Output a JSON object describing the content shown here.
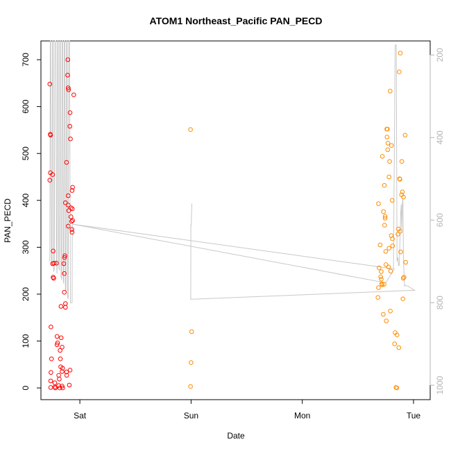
{
  "chart_data": {
    "type": "scatter",
    "title": "ATOM1 Northeast_Pacific PAN_PECD",
    "xlabel": "Date",
    "ylabel": "PAN_PECD",
    "x_ticks": [
      "Sat",
      "Sun",
      "Mon",
      "Tue"
    ],
    "y_ticks": [
      "0",
      "100",
      "200",
      "300",
      "400",
      "500",
      "600",
      "700"
    ],
    "y_right_ticks": [
      "200",
      "400",
      "600",
      "800",
      "1000"
    ],
    "xlim_days": [
      -0.35,
      3.15
    ],
    "ylim": [
      -25,
      740
    ],
    "y_right_lim_hpa": [
      1035,
      166
    ],
    "grid": false,
    "colors": {
      "red": "#ff0000",
      "orange": "#ff8c00",
      "pressure_line": "#c8c8c8",
      "right_axis": "#b3b3b3"
    },
    "series": [
      {
        "color": "red",
        "points": [
          [
            -0.27,
            648
          ],
          [
            -0.266,
            541
          ],
          [
            -0.263,
            539
          ],
          [
            -0.27,
            443
          ],
          [
            -0.265,
            459
          ],
          [
            -0.245,
            455
          ],
          [
            -0.26,
            130
          ],
          [
            -0.255,
            62
          ],
          [
            -0.26,
            33
          ],
          [
            -0.262,
            15
          ],
          [
            -0.262,
            1
          ],
          [
            -0.24,
            292
          ],
          [
            -0.245,
            265
          ],
          [
            -0.232,
            266
          ],
          [
            -0.21,
            266
          ],
          [
            -0.24,
            236
          ],
          [
            -0.235,
            234
          ],
          [
            -0.225,
            11
          ],
          [
            -0.225,
            2
          ],
          [
            -0.22,
            0
          ],
          [
            -0.205,
            110
          ],
          [
            -0.2,
            96
          ],
          [
            -0.205,
            92
          ],
          [
            -0.19,
            27
          ],
          [
            -0.185,
            19
          ],
          [
            -0.19,
            5
          ],
          [
            -0.18,
            0
          ],
          [
            -0.178,
            80
          ],
          [
            -0.175,
            62
          ],
          [
            -0.172,
            45
          ],
          [
            -0.168,
            107
          ],
          [
            -0.17,
            174
          ],
          [
            -0.16,
            35
          ],
          [
            -0.16,
            87
          ],
          [
            -0.155,
            42
          ],
          [
            -0.16,
            4
          ],
          [
            -0.155,
            0
          ],
          [
            -0.14,
            204
          ],
          [
            -0.14,
            244
          ],
          [
            -0.145,
            265
          ],
          [
            -0.135,
            282
          ],
          [
            -0.138,
            278
          ],
          [
            -0.13,
            180
          ],
          [
            -0.13,
            172
          ],
          [
            -0.13,
            395
          ],
          [
            -0.12,
            34
          ],
          [
            -0.118,
            27
          ],
          [
            -0.12,
            481
          ],
          [
            -0.11,
            667
          ],
          [
            -0.108,
            700
          ],
          [
            -0.105,
            640
          ],
          [
            -0.102,
            636
          ],
          [
            -0.105,
            390
          ],
          [
            -0.105,
            345
          ],
          [
            -0.105,
            410
          ],
          [
            -0.1,
            378
          ],
          [
            -0.095,
            6
          ],
          [
            -0.088,
            38
          ],
          [
            -0.09,
            558
          ],
          [
            -0.088,
            587
          ],
          [
            -0.085,
            531
          ],
          [
            -0.08,
            384
          ],
          [
            -0.08,
            365
          ],
          [
            -0.075,
            355
          ],
          [
            -0.072,
            338
          ],
          [
            -0.07,
            332
          ],
          [
            -0.07,
            421
          ],
          [
            -0.065,
            428
          ],
          [
            -0.068,
            382
          ],
          [
            -0.065,
            357
          ],
          [
            -0.055,
            625
          ]
        ]
      },
      {
        "color": "orange",
        "points": [
          [
            0.995,
            551
          ],
          [
            1.005,
            120
          ],
          [
            1.0,
            54
          ],
          [
            0.995,
            3
          ],
          [
            2.68,
            193
          ],
          [
            2.685,
            214
          ],
          [
            2.69,
            256
          ],
          [
            2.685,
            393
          ],
          [
            2.7,
            305
          ],
          [
            2.705,
            237
          ],
          [
            2.71,
            232
          ],
          [
            2.71,
            248
          ],
          [
            2.715,
            222
          ],
          [
            2.718,
            220
          ],
          [
            2.72,
            494
          ],
          [
            2.728,
            157
          ],
          [
            2.73,
            376
          ],
          [
            2.735,
            221
          ],
          [
            2.738,
            432
          ],
          [
            2.74,
            347
          ],
          [
            2.745,
            366
          ],
          [
            2.745,
            362
          ],
          [
            2.75,
            291
          ],
          [
            2.752,
            263
          ],
          [
            2.755,
            143
          ],
          [
            2.76,
            552
          ],
          [
            2.765,
            552
          ],
          [
            2.762,
            535
          ],
          [
            2.768,
            508
          ],
          [
            2.77,
            522
          ],
          [
            2.775,
            258
          ],
          [
            2.78,
            450
          ],
          [
            2.78,
            298
          ],
          [
            2.785,
            483
          ],
          [
            2.79,
            633
          ],
          [
            2.792,
            164
          ],
          [
            2.795,
            249
          ],
          [
            2.8,
            325
          ],
          [
            2.802,
            517
          ],
          [
            2.808,
            400
          ],
          [
            2.81,
            318
          ],
          [
            2.812,
            303
          ],
          [
            2.83,
            94
          ],
          [
            2.835,
            118
          ],
          [
            2.842,
            1
          ],
          [
            2.85,
            0
          ],
          [
            2.852,
            113
          ],
          [
            2.86,
            328
          ],
          [
            2.865,
            339
          ],
          [
            2.868,
            86
          ],
          [
            2.872,
            674
          ],
          [
            2.875,
            446
          ],
          [
            2.878,
            445
          ],
          [
            2.88,
            334
          ],
          [
            2.882,
            714
          ],
          [
            2.885,
            290
          ],
          [
            2.893,
            412
          ],
          [
            2.895,
            483
          ],
          [
            2.9,
            418
          ],
          [
            2.905,
            190
          ],
          [
            2.908,
            234
          ],
          [
            2.91,
            407
          ],
          [
            2.915,
            236
          ],
          [
            2.925,
            539
          ],
          [
            2.93,
            268
          ]
        ]
      }
    ],
    "pressure_line_hpa": [
      [
        -0.27,
        700
      ],
      [
        -0.266,
        166
      ],
      [
        -0.262,
        166
      ],
      [
        -0.256,
        705
      ],
      [
        -0.25,
        712
      ],
      [
        -0.245,
        166
      ],
      [
        -0.24,
        166
      ],
      [
        -0.235,
        725
      ],
      [
        -0.23,
        720
      ],
      [
        -0.225,
        166
      ],
      [
        -0.215,
        166
      ],
      [
        -0.21,
        700
      ],
      [
        -0.205,
        730
      ],
      [
        -0.2,
        166
      ],
      [
        -0.195,
        166
      ],
      [
        -0.19,
        708
      ],
      [
        -0.185,
        722
      ],
      [
        -0.18,
        166
      ],
      [
        -0.175,
        166
      ],
      [
        -0.17,
        735
      ],
      [
        -0.165,
        744
      ],
      [
        -0.16,
        166
      ],
      [
        -0.155,
        166
      ],
      [
        -0.15,
        746
      ],
      [
        -0.145,
        754
      ],
      [
        -0.14,
        166
      ],
      [
        -0.135,
        166
      ],
      [
        -0.13,
        768
      ],
      [
        -0.125,
        774
      ],
      [
        -0.12,
        166
      ],
      [
        -0.115,
        166
      ],
      [
        -0.11,
        789
      ],
      [
        -0.105,
        790
      ],
      [
        -0.1,
        166
      ],
      [
        -0.093,
        166
      ],
      [
        -0.085,
        800
      ],
      [
        -0.07,
        800
      ],
      [
        -0.068,
        610
      ],
      [
        -0.06,
        610
      ],
      [
        2.82,
        718
      ],
      [
        2.835,
        176
      ],
      [
        2.845,
        176
      ],
      [
        2.852,
        700
      ],
      [
        2.86,
        690
      ],
      [
        2.865,
        710
      ],
      [
        2.872,
        710
      ],
      [
        2.878,
        652
      ],
      [
        2.885,
        584
      ],
      [
        2.89,
        562
      ],
      [
        2.895,
        625
      ],
      [
        2.9,
        560
      ],
      [
        2.905,
        548
      ],
      [
        2.91,
        700
      ],
      [
        2.92,
        760
      ],
      [
        2.93,
        758
      ],
      [
        2.95,
        760
      ],
      [
        2.985,
        766
      ],
      [
        3.01,
        770
      ],
      [
        1.09,
        791
      ],
      [
        0.997,
        792
      ],
      [
        0.998,
        612
      ],
      [
        1.002,
        612
      ],
      [
        1.003,
        595
      ],
      [
        1.007,
        560
      ]
    ],
    "pressure_line_hpa_secondary": [
      [
        -0.06,
        610
      ],
      [
        2.75,
        752
      ],
      [
        2.83,
        718
      ]
    ]
  }
}
